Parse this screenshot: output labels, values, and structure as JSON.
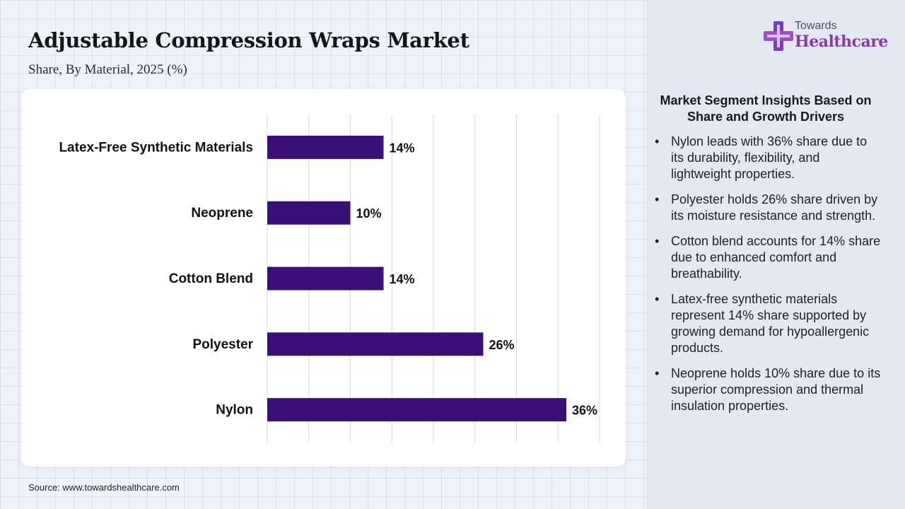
{
  "header": {
    "title": "Adjustable Compression Wraps Market",
    "subtitle": "Share, By Material, 2025 (%)"
  },
  "logo": {
    "line1": "Towards",
    "line2": "Healthcare"
  },
  "chart_data": {
    "type": "bar",
    "orientation": "horizontal",
    "categories": [
      "Latex-Free Synthetic Materials",
      "Neoprene",
      "Cotton Blend",
      "Polyester",
      "Nylon"
    ],
    "values": [
      14,
      10,
      14,
      26,
      36
    ],
    "value_labels": [
      "14%",
      "10%",
      "14%",
      "26%",
      "36%"
    ],
    "xlim": [
      0,
      40
    ],
    "grid": true,
    "bar_color": "#3a1078"
  },
  "insights": {
    "title": "Market Segment Insights Based on Share and Growth Drivers",
    "items": [
      "Nylon leads with 36% share due to its durability, flexibility, and lightweight properties.",
      "Polyester holds 26% share driven by its moisture resistance and strength.",
      "Cotton blend accounts for 14% share due to enhanced comfort and breathability.",
      "Latex-free synthetic materials represent 14% share supported by growing demand for hypoallergenic products.",
      "Neoprene holds 10% share due to its superior compression and thermal insulation properties."
    ]
  },
  "footer": {
    "source": "Source: www.towardshealthcare.com"
  }
}
